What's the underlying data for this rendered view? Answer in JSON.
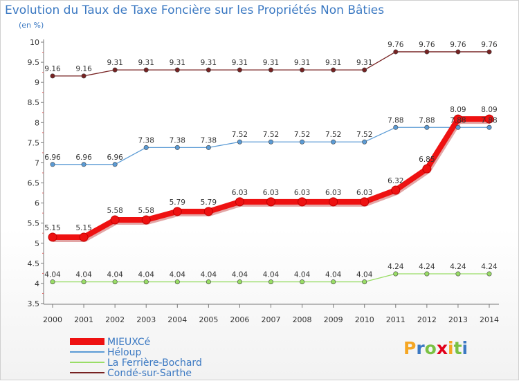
{
  "chart_data": {
    "type": "line",
    "title": "Evolution du Taux de Taxe Foncière sur les Propriétés Non Bâties",
    "subtitle": "(en %)",
    "x": [
      "2000",
      "2001",
      "2002",
      "2003",
      "2004",
      "2005",
      "2006",
      "2007",
      "2008",
      "2009",
      "2010",
      "2011",
      "2012",
      "2013",
      "2014"
    ],
    "yticks": [
      "3.5",
      "4",
      "4.5",
      "5",
      "5.5",
      "6",
      "6.5",
      "7",
      "7.5",
      "8",
      "8.5",
      "9",
      "9.5",
      "10"
    ],
    "ylim": [
      3.5,
      10
    ],
    "grid": false,
    "legend_position": "bottom-left",
    "series": [
      {
        "name": "MIEUXCé",
        "color": "#ee1111",
        "values": [
          5.15,
          5.15,
          5.58,
          5.58,
          5.79,
          5.79,
          6.03,
          6.03,
          6.03,
          6.03,
          6.03,
          6.32,
          6.85,
          8.09,
          8.09
        ],
        "labels": [
          "5.15",
          "5.15",
          "5.58",
          "5.58",
          "5.79",
          "5.79",
          "6.03",
          "6.03",
          "6.03",
          "6.03",
          "6.03",
          "6.32",
          "6.85",
          "8.09",
          "8.09"
        ]
      },
      {
        "name": "Héloup",
        "color": "#5b9bd5",
        "values": [
          6.96,
          6.96,
          6.96,
          7.38,
          7.38,
          7.38,
          7.52,
          7.52,
          7.52,
          7.52,
          7.52,
          7.88,
          7.88,
          7.88,
          7.88
        ],
        "labels": [
          "6.96",
          "6.96",
          "6.96",
          "7.38",
          "7.38",
          "7.38",
          "7.52",
          "7.52",
          "7.52",
          "7.52",
          "7.52",
          "7.88",
          "7.88",
          "7.88",
          "7.88"
        ]
      },
      {
        "name": "La Ferrière-Bochard",
        "color": "#99dd66",
        "values": [
          4.04,
          4.04,
          4.04,
          4.04,
          4.04,
          4.04,
          4.04,
          4.04,
          4.04,
          4.04,
          4.04,
          4.24,
          4.24,
          4.24,
          4.24
        ],
        "labels": [
          "4.04",
          "4.04",
          "4.04",
          "4.04",
          "4.04",
          "4.04",
          "4.04",
          "4.04",
          "4.04",
          "4.04",
          "4.04",
          "4.24",
          "4.24",
          "4.24",
          "4.24"
        ]
      },
      {
        "name": "Condé-sur-Sarthe",
        "color": "#772222",
        "values": [
          9.16,
          9.16,
          9.31,
          9.31,
          9.31,
          9.31,
          9.31,
          9.31,
          9.31,
          9.31,
          9.31,
          9.76,
          9.76,
          9.76,
          9.76
        ],
        "labels": [
          "9.16",
          "9.16",
          "9.31",
          "9.31",
          "9.31",
          "9.31",
          "9.31",
          "9.31",
          "9.31",
          "9.31",
          "9.31",
          "9.76",
          "9.76",
          "9.76",
          "9.76"
        ]
      }
    ]
  },
  "logo": {
    "letters": [
      "P",
      "r",
      "o",
      "x",
      "i",
      "t",
      "i"
    ],
    "colors": [
      "#f5a623",
      "#3a78c2",
      "#7ac143",
      "#e2001a",
      "#f5a623",
      "#7ac143",
      "#3a78c2"
    ]
  }
}
